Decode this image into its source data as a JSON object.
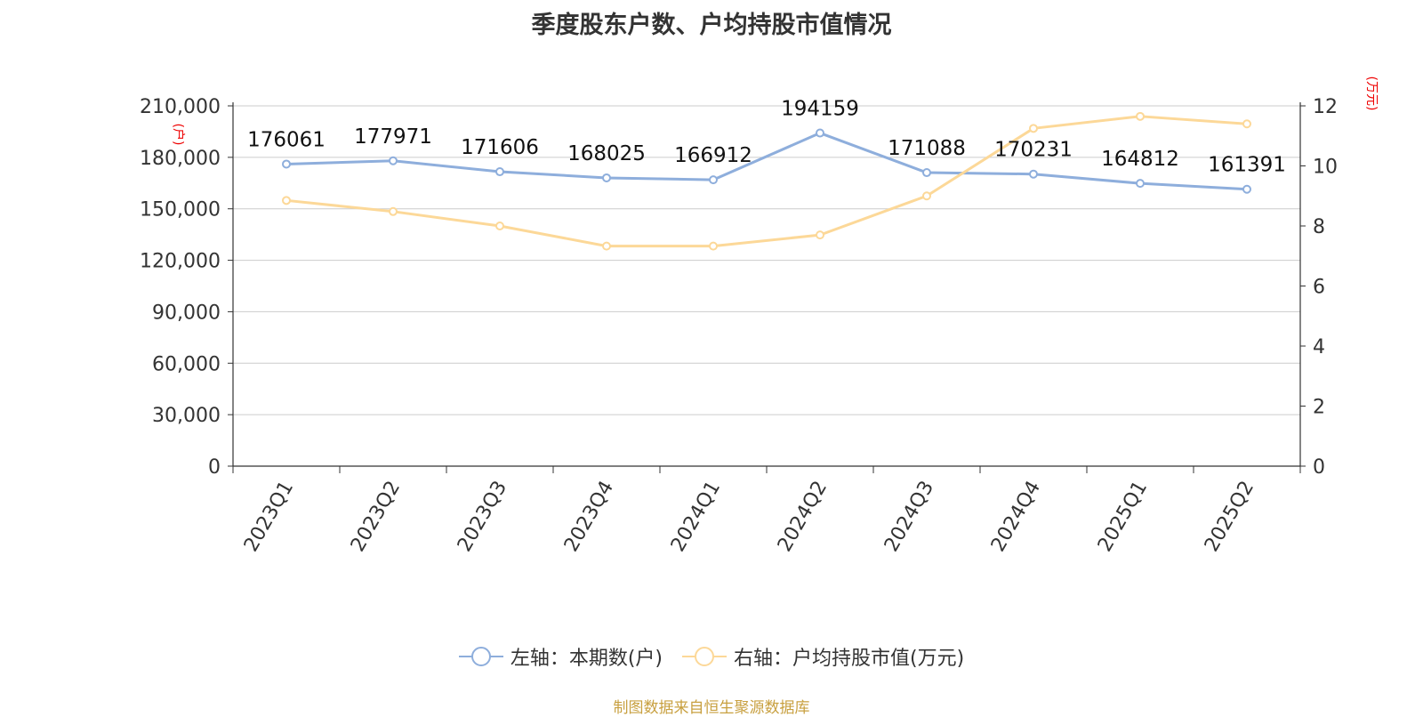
{
  "chart_data": {
    "type": "line",
    "title": "季度股东户数、户均持股市值情况",
    "categories": [
      "2023Q1",
      "2023Q2",
      "2023Q3",
      "2023Q4",
      "2024Q1",
      "2024Q2",
      "2024Q3",
      "2024Q4",
      "2025Q1",
      "2025Q2"
    ],
    "series": [
      {
        "name": "左轴：本期数(户)",
        "axis": "left",
        "color": "#8eaedc",
        "values": [
          176061,
          177971,
          171606,
          168025,
          166912,
          194159,
          171088,
          170231,
          164812,
          161391
        ],
        "data_labels": [
          "176061",
          "177971",
          "171606",
          "168025",
          "166912",
          "194159",
          "171088",
          "170231",
          "164812",
          "161391"
        ]
      },
      {
        "name": "右轴：户均持股市值(万元)",
        "axis": "right",
        "color": "#fcd898",
        "values": [
          8.85,
          8.48,
          8.0,
          7.33,
          7.33,
          7.7,
          9.0,
          11.25,
          11.65,
          11.4
        ]
      }
    ],
    "left_axis": {
      "unit": "(户)",
      "ylim": [
        0,
        210000
      ],
      "ticks": [
        "0",
        "30,000",
        "60,000",
        "90,000",
        "120,000",
        "150,000",
        "180,000",
        "210,000"
      ]
    },
    "right_axis": {
      "unit": "(万元)",
      "ylim": [
        0,
        12
      ],
      "ticks": [
        "0",
        "2",
        "4",
        "6",
        "8",
        "10",
        "12"
      ]
    },
    "grid": true,
    "legend_position": "bottom-center"
  },
  "source_text": "制图数据来自恒生聚源数据库"
}
